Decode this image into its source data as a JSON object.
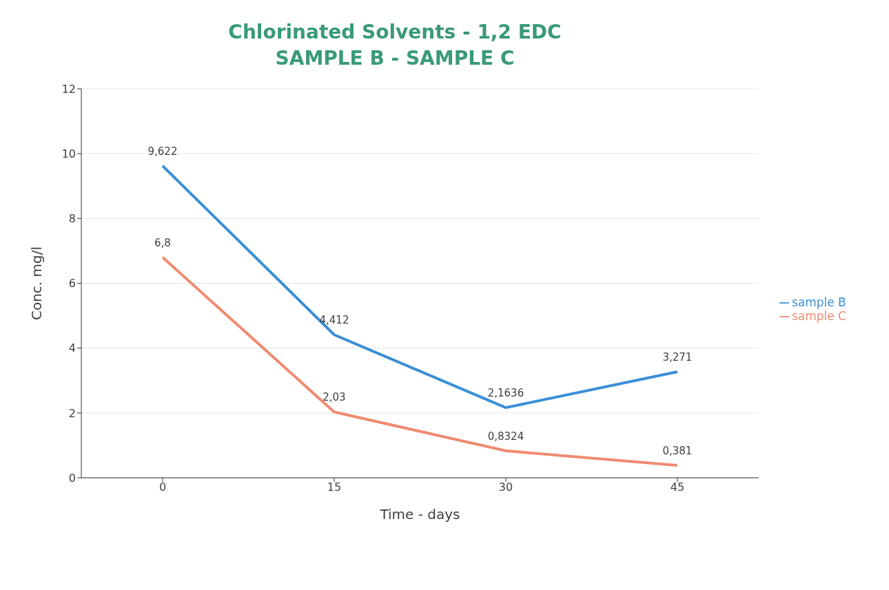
{
  "chart_data": {
    "type": "line",
    "title": "Chlorinated Solvents - 1,2 EDC",
    "subtitle": "SAMPLE B - SAMPLE C",
    "xlabel": "Time - days",
    "ylabel": "Conc. mg/l",
    "categories": [
      "0",
      "15",
      "30",
      "45"
    ],
    "series": [
      {
        "name": "sample B",
        "color": "#3a8fd6",
        "values": [
          9.622,
          4.412,
          2.1636,
          3.271
        ],
        "value_labels": [
          "9,622",
          "4,412",
          "2,1636",
          "3,271"
        ]
      },
      {
        "name": "sample C",
        "color": "#f08a70",
        "values": [
          6.8,
          2.03,
          0.8324,
          0.381
        ],
        "value_labels": [
          "6,8",
          "2,03",
          "0,8324",
          "0,381"
        ]
      }
    ],
    "ylim": [
      0,
      12
    ],
    "yticks": [
      0,
      2,
      4,
      6,
      8,
      10,
      12
    ],
    "grid": "y",
    "legend": "right",
    "marker": "none",
    "line_style": "solid"
  }
}
